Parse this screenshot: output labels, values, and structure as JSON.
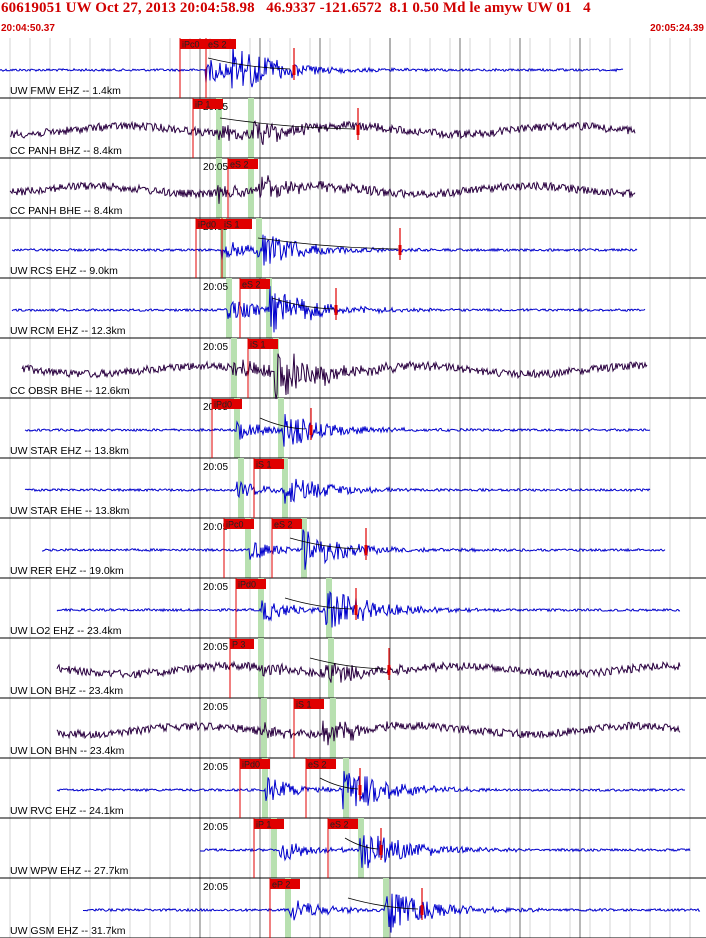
{
  "header": {
    "title": "60619051 UW Oct 27, 2013 20:04:58.98   46.9337 -121.6572  8.1 0.50 Md le amyw UW 01   4",
    "start_time": "20:04:50.37",
    "end_time": "20:05:24.39"
  },
  "time_tick_label": "20:05",
  "colors": {
    "header_red": "#d00000",
    "pick_red": "#e00000",
    "trace_blue": "#0000cc",
    "trace_dark": "#2a0040",
    "window_green": "#b8e0b0",
    "grid_black": "#000000"
  },
  "traces": [
    {
      "label": "UW FMW EHZ -- 1.4km",
      "color": "blue",
      "show_tick": false,
      "picks": [
        {
          "text": "iPc0"
        },
        {
          "text": "eS 2"
        }
      ]
    },
    {
      "label": "CC PANH BHZ -- 8.4km",
      "color": "dark",
      "show_tick": true,
      "picks": [
        {
          "text": "iP 1"
        }
      ]
    },
    {
      "label": "CC PANH BHE -- 8.4km",
      "color": "dark",
      "show_tick": true,
      "picks": [
        {
          "text": "eS 2"
        }
      ]
    },
    {
      "label": "UW RCS EHZ -- 9.0km",
      "color": "blue",
      "show_tick": true,
      "picks": [
        {
          "text": "iPd0"
        },
        {
          "text": "iS 1"
        }
      ]
    },
    {
      "label": "UW RCM EHZ -- 12.3km",
      "color": "blue",
      "show_tick": true,
      "picks": [
        {
          "text": "eS 2"
        }
      ]
    },
    {
      "label": "CC OBSR BHE -- 12.6km",
      "color": "dark",
      "show_tick": true,
      "picks": [
        {
          "text": "iS 1"
        }
      ]
    },
    {
      "label": "UW STAR EHZ -- 13.8km",
      "color": "blue",
      "show_tick": true,
      "picks": [
        {
          "text": "iPd0"
        }
      ]
    },
    {
      "label": "UW STAR EHE -- 13.8km",
      "color": "blue",
      "show_tick": true,
      "picks": [
        {
          "text": "iS 1"
        }
      ]
    },
    {
      "label": "UW RER EHZ -- 19.0km",
      "color": "blue",
      "show_tick": true,
      "picks": [
        {
          "text": "iPc0"
        },
        {
          "text": "eS 2"
        }
      ]
    },
    {
      "label": "UW LO2 EHZ -- 23.4km",
      "color": "blue",
      "show_tick": true,
      "picks": [
        {
          "text": "iPd0"
        }
      ]
    },
    {
      "label": "UW LON BHZ -- 23.4km",
      "color": "dark",
      "show_tick": true,
      "picks": [
        {
          "text": "P 3"
        }
      ]
    },
    {
      "label": "UW LON BHN -- 23.4km",
      "color": "dark",
      "show_tick": true,
      "picks": [
        {
          "text": "iS 1"
        }
      ]
    },
    {
      "label": "UW RVC EHZ -- 24.1km",
      "color": "blue",
      "show_tick": true,
      "picks": [
        {
          "text": "iPd0"
        },
        {
          "text": "eS 2"
        }
      ]
    },
    {
      "label": "UW WPW EHZ -- 27.7km",
      "color": "blue",
      "show_tick": true,
      "picks": [
        {
          "text": "iP 1"
        },
        {
          "text": "eS 2"
        }
      ]
    },
    {
      "label": "UW GSM EHZ -- 31.7km",
      "color": "blue",
      "show_tick": true,
      "picks": [
        {
          "text": "eP 2"
        }
      ]
    }
  ]
}
